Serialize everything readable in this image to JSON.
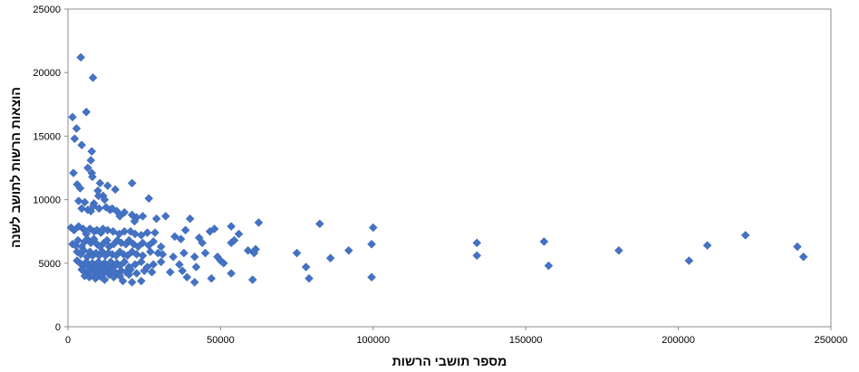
{
  "chart_data": {
    "type": "scatter",
    "title": "",
    "xlabel": "מספר תושבי הרשות",
    "ylabel": "הוצאות הרשות לתושב לשנה",
    "xlim": [
      0,
      250000
    ],
    "ylim": [
      0,
      25000
    ],
    "x_ticks": [
      "0",
      "50000",
      "100000",
      "150000",
      "200000",
      "250000"
    ],
    "y_ticks": [
      "0",
      "5000",
      "10000",
      "15000",
      "20000",
      "25000"
    ],
    "grid": false,
    "legend": "none",
    "marker_color": "#4472C4",
    "marker": "diamond",
    "points": [
      [
        4200,
        21200
      ],
      [
        8200,
        19600
      ],
      [
        6000,
        16900
      ],
      [
        1500,
        16500
      ],
      [
        2800,
        15600
      ],
      [
        2200,
        14800
      ],
      [
        4500,
        14300
      ],
      [
        7800,
        13800
      ],
      [
        7500,
        13100
      ],
      [
        6500,
        12500
      ],
      [
        1800,
        12100
      ],
      [
        7800,
        12100
      ],
      [
        8000,
        11800
      ],
      [
        10500,
        11300
      ],
      [
        3000,
        11200
      ],
      [
        4000,
        10900
      ],
      [
        9800,
        10700
      ],
      [
        15500,
        10800
      ],
      [
        13000,
        11100
      ],
      [
        21000,
        11300
      ],
      [
        26500,
        10100
      ],
      [
        3500,
        9900
      ],
      [
        5500,
        9800
      ],
      [
        8500,
        9700
      ],
      [
        11500,
        10300
      ],
      [
        12000,
        10000
      ],
      [
        10000,
        10300
      ],
      [
        4500,
        9300
      ],
      [
        6500,
        9200
      ],
      [
        7500,
        9100
      ],
      [
        8300,
        9500
      ],
      [
        10200,
        9300
      ],
      [
        12500,
        9400
      ],
      [
        13800,
        9200
      ],
      [
        14500,
        9300
      ],
      [
        16000,
        9100
      ],
      [
        17000,
        8700
      ],
      [
        18500,
        9000
      ],
      [
        21000,
        8800
      ],
      [
        22500,
        8600
      ],
      [
        21800,
        8300
      ],
      [
        24500,
        8700
      ],
      [
        29000,
        8500
      ],
      [
        32000,
        8700
      ],
      [
        40000,
        8500
      ],
      [
        1000,
        7800
      ],
      [
        2000,
        7600
      ],
      [
        3500,
        7900
      ],
      [
        5000,
        7700
      ],
      [
        6000,
        7300
      ],
      [
        7200,
        7700
      ],
      [
        8600,
        7500
      ],
      [
        9500,
        7600
      ],
      [
        10800,
        7400
      ],
      [
        11500,
        7700
      ],
      [
        13000,
        7600
      ],
      [
        14800,
        7500
      ],
      [
        16800,
        7300
      ],
      [
        18500,
        7500
      ],
      [
        20500,
        7500
      ],
      [
        22000,
        7300
      ],
      [
        24000,
        7200
      ],
      [
        26000,
        7400
      ],
      [
        28500,
        7400
      ],
      [
        35000,
        7100
      ],
      [
        38500,
        7600
      ],
      [
        43000,
        7000
      ],
      [
        46500,
        7500
      ],
      [
        48000,
        7700
      ],
      [
        53500,
        7900
      ],
      [
        56000,
        7300
      ],
      [
        62500,
        8200
      ],
      [
        82500,
        8100
      ],
      [
        100000,
        7800
      ],
      [
        1500,
        6500
      ],
      [
        2500,
        6400
      ],
      [
        3300,
        6800
      ],
      [
        4500,
        6300
      ],
      [
        5500,
        6700
      ],
      [
        6300,
        6900
      ],
      [
        7500,
        6600
      ],
      [
        8500,
        6900
      ],
      [
        9500,
        6500
      ],
      [
        10500,
        6300
      ],
      [
        11800,
        6600
      ],
      [
        12800,
        6800
      ],
      [
        13500,
        6300
      ],
      [
        15000,
        6500
      ],
      [
        16200,
        6800
      ],
      [
        17500,
        6600
      ],
      [
        19000,
        6500
      ],
      [
        20000,
        6800
      ],
      [
        21500,
        6500
      ],
      [
        23000,
        6300
      ],
      [
        24500,
        6600
      ],
      [
        26500,
        6400
      ],
      [
        28000,
        6700
      ],
      [
        30500,
        6300
      ],
      [
        37000,
        6900
      ],
      [
        44000,
        6600
      ],
      [
        53500,
        6600
      ],
      [
        54500,
        6800
      ],
      [
        59000,
        6000
      ],
      [
        61500,
        6100
      ],
      [
        75000,
        5800
      ],
      [
        92000,
        6000
      ],
      [
        99500,
        6500
      ],
      [
        134000,
        6600
      ],
      [
        156000,
        6700
      ],
      [
        180500,
        6000
      ],
      [
        209500,
        6400
      ],
      [
        222000,
        7200
      ],
      [
        239000,
        6300
      ],
      [
        3000,
        5900
      ],
      [
        4200,
        5700
      ],
      [
        5200,
        6000
      ],
      [
        6300,
        5500
      ],
      [
        7200,
        5900
      ],
      [
        8100,
        5600
      ],
      [
        9200,
        5800
      ],
      [
        10200,
        5600
      ],
      [
        11300,
        5900
      ],
      [
        12300,
        5600
      ],
      [
        13200,
        5800
      ],
      [
        14500,
        5700
      ],
      [
        15800,
        5600
      ],
      [
        17000,
        5900
      ],
      [
        18200,
        5700
      ],
      [
        19500,
        5600
      ],
      [
        21000,
        5900
      ],
      [
        22500,
        5700
      ],
      [
        24500,
        5600
      ],
      [
        27000,
        5900
      ],
      [
        29500,
        5800
      ],
      [
        31000,
        5700
      ],
      [
        34500,
        5500
      ],
      [
        38000,
        5800
      ],
      [
        41500,
        5500
      ],
      [
        45000,
        5800
      ],
      [
        49000,
        5500
      ],
      [
        50000,
        5200
      ],
      [
        61000,
        5800
      ],
      [
        86000,
        5400
      ],
      [
        134000,
        5600
      ],
      [
        241000,
        5500
      ],
      [
        3000,
        5200
      ],
      [
        4000,
        5000
      ],
      [
        5000,
        4800
      ],
      [
        6000,
        5100
      ],
      [
        7000,
        4700
      ],
      [
        8000,
        5000
      ],
      [
        9000,
        4800
      ],
      [
        10000,
        5100
      ],
      [
        11000,
        4700
      ],
      [
        12000,
        5000
      ],
      [
        13000,
        4800
      ],
      [
        14000,
        5100
      ],
      [
        15000,
        4700
      ],
      [
        16000,
        5000
      ],
      [
        17000,
        4800
      ],
      [
        18500,
        5100
      ],
      [
        20000,
        4700
      ],
      [
        22000,
        4900
      ],
      [
        24000,
        5100
      ],
      [
        26000,
        4700
      ],
      [
        28000,
        4900
      ],
      [
        30500,
        5100
      ],
      [
        36500,
        4900
      ],
      [
        42000,
        4700
      ],
      [
        51000,
        5000
      ],
      [
        78000,
        4700
      ],
      [
        157500,
        4800
      ],
      [
        203500,
        5200
      ],
      [
        4500,
        4500
      ],
      [
        5500,
        4300
      ],
      [
        6500,
        4400
      ],
      [
        7500,
        4200
      ],
      [
        8500,
        4400
      ],
      [
        9500,
        4300
      ],
      [
        10500,
        4500
      ],
      [
        11500,
        4200
      ],
      [
        12500,
        4400
      ],
      [
        13500,
        4300
      ],
      [
        14500,
        4500
      ],
      [
        16000,
        4200
      ],
      [
        17500,
        4400
      ],
      [
        19000,
        4300
      ],
      [
        20500,
        4500
      ],
      [
        22500,
        4200
      ],
      [
        25000,
        4400
      ],
      [
        27500,
        4300
      ],
      [
        33500,
        4300
      ],
      [
        37500,
        4400
      ],
      [
        5500,
        4000
      ],
      [
        7000,
        3900
      ],
      [
        8000,
        4100
      ],
      [
        9000,
        3800
      ],
      [
        10000,
        4000
      ],
      [
        11000,
        3900
      ],
      [
        12000,
        3700
      ],
      [
        13500,
        4100
      ],
      [
        15000,
        3900
      ],
      [
        17000,
        4000
      ],
      [
        18000,
        3600
      ],
      [
        20000,
        4100
      ],
      [
        21000,
        3500
      ],
      [
        24000,
        3600
      ],
      [
        39000,
        3900
      ],
      [
        41500,
        3500
      ],
      [
        47000,
        3800
      ],
      [
        53500,
        4200
      ],
      [
        60500,
        3700
      ],
      [
        79000,
        3800
      ],
      [
        99500,
        3900
      ]
    ]
  }
}
